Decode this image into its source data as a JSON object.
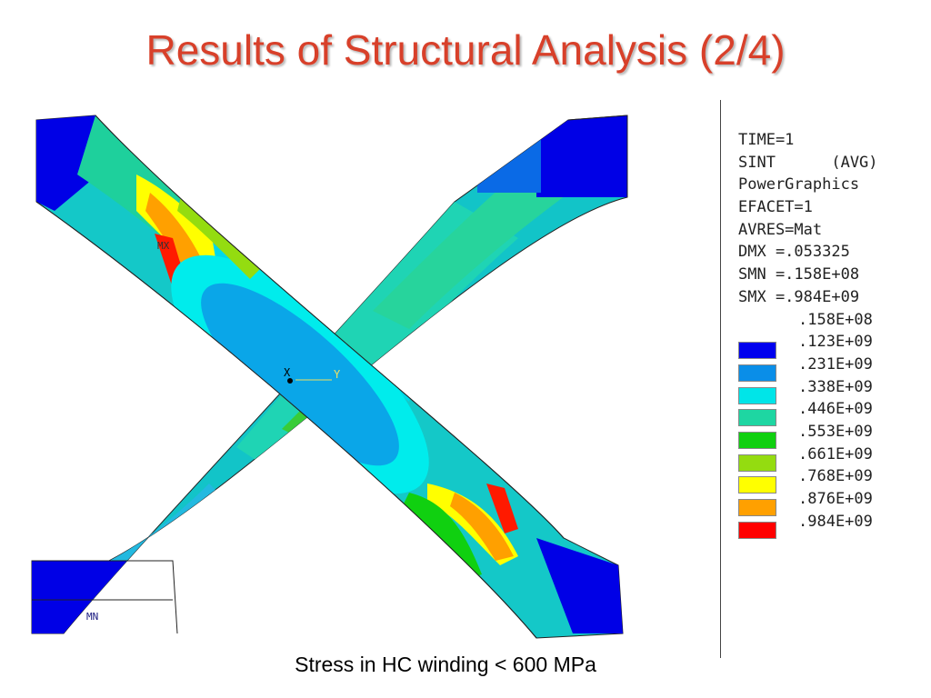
{
  "slide": {
    "title": "Results of Structural Analysis (2/4)",
    "caption": "Stress in HC winding < 600 MPa"
  },
  "plot": {
    "labels": {
      "max": "MX",
      "min": "MN",
      "axis_x": "X",
      "axis_y": "Y"
    }
  },
  "legend": {
    "header_lines": [
      "TIME=1",
      "SINT      (AVG)",
      "PowerGraphics",
      "EFACET=1",
      "AVRES=Mat",
      "DMX =.053325",
      "SMN =.158E+08",
      "SMX =.984E+09"
    ],
    "scale_values": [
      ".158E+08",
      ".123E+09",
      ".231E+09",
      ".338E+09",
      ".446E+09",
      ".553E+09",
      ".661E+09",
      ".768E+09",
      ".876E+09",
      ".984E+09"
    ],
    "swatch_colors": [
      "#0000ee",
      "#0a8ee8",
      "#00e5e8",
      "#1ed6a2",
      "#10d010",
      "#94dc10",
      "#ffff00",
      "#ffa000",
      "#ff0000"
    ]
  }
}
